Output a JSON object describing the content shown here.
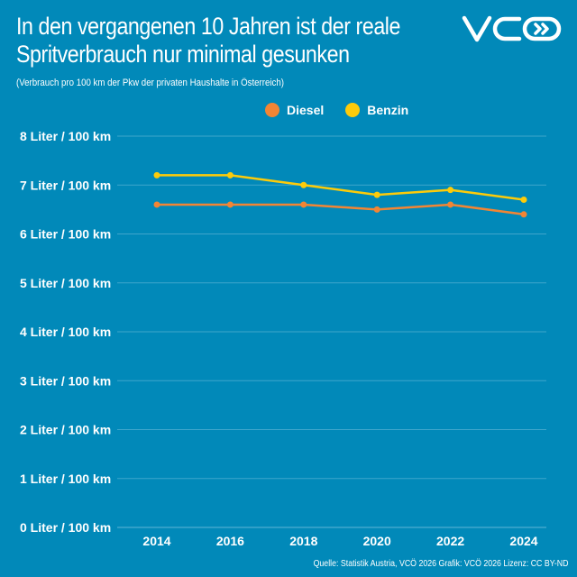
{
  "title_line1": "In den vergangenen 10 Jahren ist der reale",
  "title_line2": "Spritverbrauch nur minimal gesunken",
  "subtitle": "(Verbrauch pro 100 km der Pkw der privaten Haushalte in Österreich)",
  "logo_text": "VCÖ",
  "source": "Quelle: Statistik Austria, VCÖ 2026 Grafik: VCÖ 2026 Lizenz: CC BY-ND",
  "chart_data": {
    "type": "line",
    "x": [
      2014,
      2016,
      2018,
      2020,
      2022,
      2024
    ],
    "xtick_labels": [
      "2014",
      "2016",
      "2018",
      "2020",
      "2022",
      "2024"
    ],
    "ytick_labels": [
      "0 Liter / 100 km",
      "1 Liter / 100 km",
      "2 Liter / 100 km",
      "3 Liter / 100 km",
      "4 Liter / 100 km",
      "5 Liter / 100 km",
      "6 Liter / 100 km",
      "7 Liter / 100 km",
      "8 Liter / 100 km"
    ],
    "ylim": [
      0,
      8
    ],
    "grid": true,
    "legend_position": "top-center",
    "series": [
      {
        "name": "Diesel",
        "color": "#f28534",
        "values": [
          6.6,
          6.6,
          6.6,
          6.5,
          6.6,
          6.4
        ]
      },
      {
        "name": "Benzin",
        "color": "#fdcb0a",
        "values": [
          7.2,
          7.2,
          7.0,
          6.8,
          6.9,
          6.7
        ]
      }
    ]
  },
  "colors": {
    "background": "#0189b9",
    "grid": "#3fa6cc"
  }
}
